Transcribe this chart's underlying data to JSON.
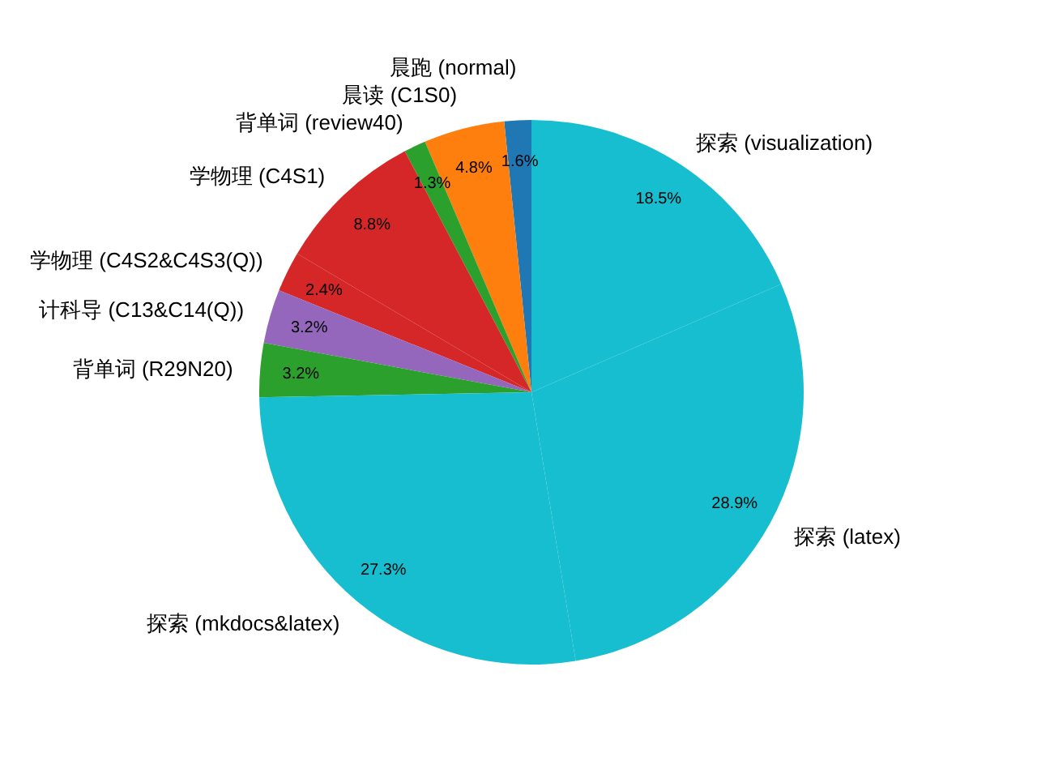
{
  "chart_data": {
    "type": "pie",
    "categories": [
      "晨跑 (normal)",
      "晨读 (C1S0)",
      "背单词 (review40)",
      "学物理 (C4S1)",
      "学物理 (C4S2&C4S3(Q))",
      "计科导 (C13&C14(Q))",
      "背单词 (R29N20)",
      "探索 (mkdocs&latex)",
      "探索 (latex)",
      "探索 (visualization)"
    ],
    "values": [
      1.6,
      4.8,
      1.3,
      8.8,
      2.4,
      3.2,
      3.2,
      27.3,
      28.9,
      18.5
    ],
    "colors": [
      "#1f77b4",
      "#ff7f0e",
      "#2ca02c",
      "#d62728",
      "#d62728",
      "#9467bd",
      "#2ca02c",
      "#17becf",
      "#17becf",
      "#17becf"
    ],
    "value_labels": [
      "1.6%",
      "4.8%",
      "1.3%",
      "8.8%",
      "2.4%",
      "3.2%",
      "3.2%",
      "27.3%",
      "28.9%",
      "18.5%"
    ]
  }
}
